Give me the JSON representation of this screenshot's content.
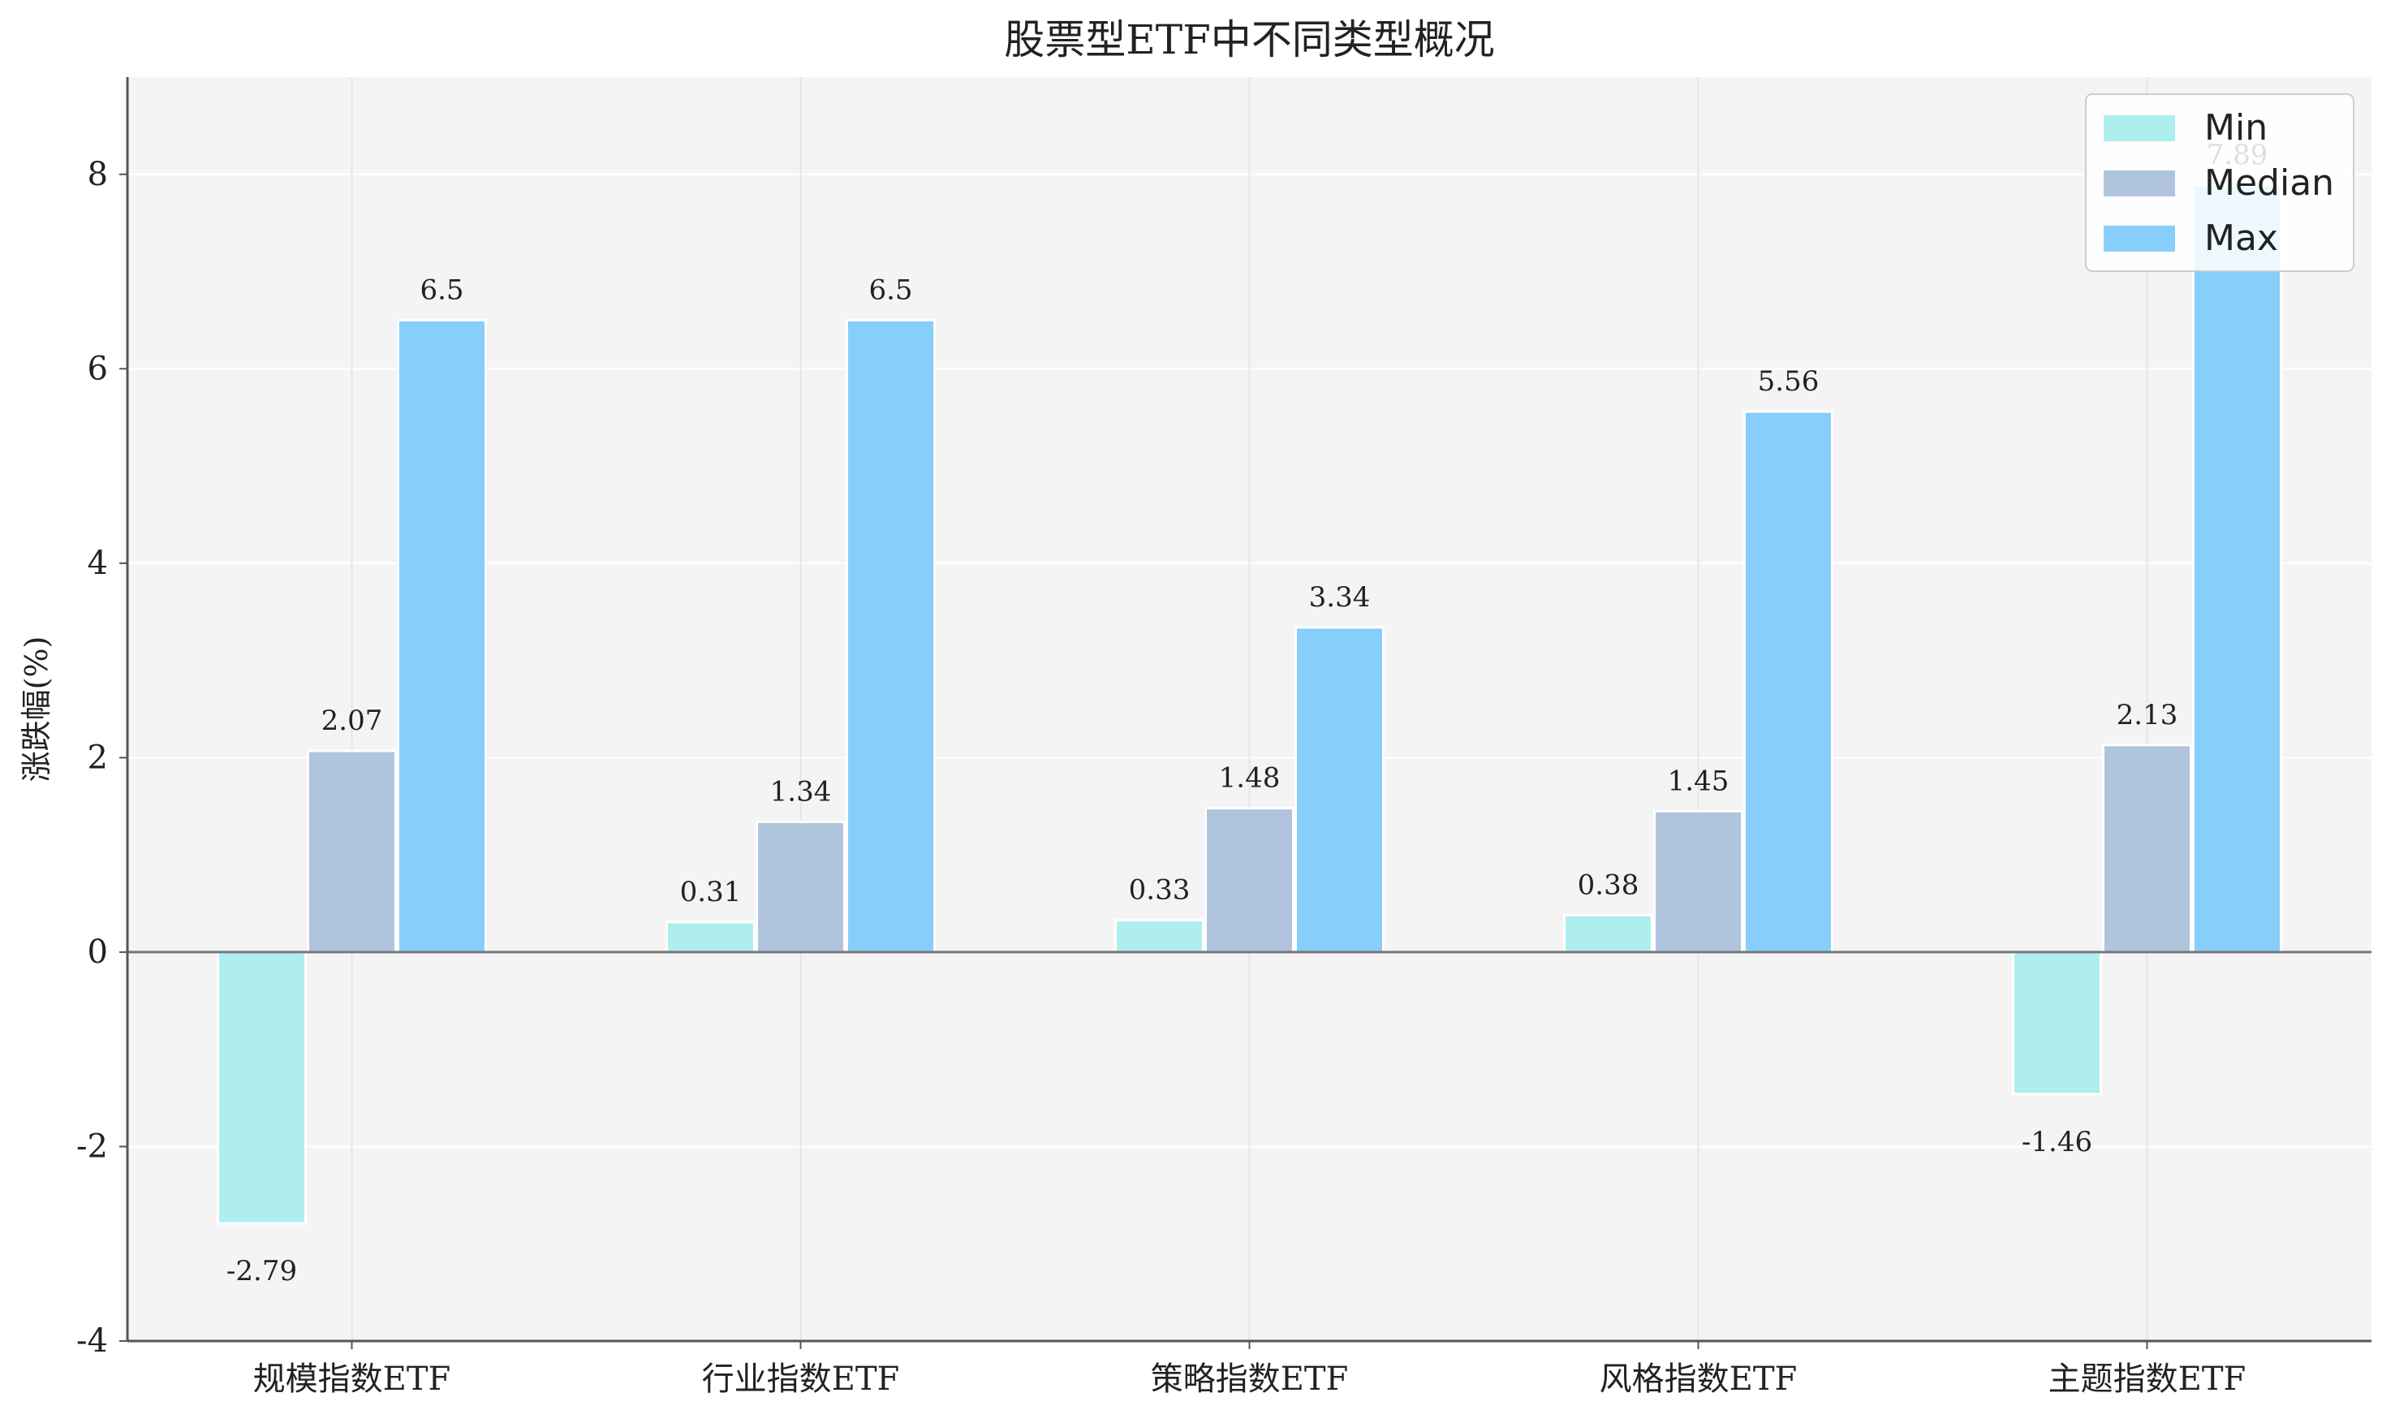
{
  "chart_data": {
    "type": "bar",
    "title": "股票型ETF中不同类型概况",
    "xlabel": "",
    "ylabel": "涨跌幅(%)",
    "categories": [
      "规模指数ETF",
      "行业指数ETF",
      "策略指数ETF",
      "风格指数ETF",
      "主题指数ETF"
    ],
    "series": [
      {
        "name": "Min",
        "color": "#afeeee",
        "values": [
          -2.79,
          0.31,
          0.33,
          0.38,
          -1.46
        ]
      },
      {
        "name": "Median",
        "color": "#b0c4de",
        "values": [
          2.07,
          1.34,
          1.48,
          1.45,
          2.13
        ]
      },
      {
        "name": "Max",
        "color": "#87cefa",
        "values": [
          6.5,
          6.5,
          3.34,
          5.56,
          7.89
        ]
      }
    ],
    "data_labels": [
      [
        "-2.79",
        "0.31",
        "0.33",
        "0.38",
        "-1.46"
      ],
      [
        "2.07",
        "1.34",
        "1.48",
        "1.45",
        "2.13"
      ],
      [
        "6.5",
        "6.5",
        "3.34",
        "5.56",
        "7.89"
      ]
    ],
    "ylim": [
      -4,
      9
    ],
    "yticks": [
      -4,
      -2,
      0,
      2,
      4,
      6,
      8
    ],
    "ytick_labels": [
      "-4",
      "-2",
      "0",
      "2",
      "4",
      "6",
      "8"
    ],
    "grid": true,
    "legend_position": "top-right",
    "colors": {
      "plot_background": "#f4f4f4",
      "grid": "#ffffff",
      "axis": "#555555",
      "zero_line": "#777777"
    }
  }
}
